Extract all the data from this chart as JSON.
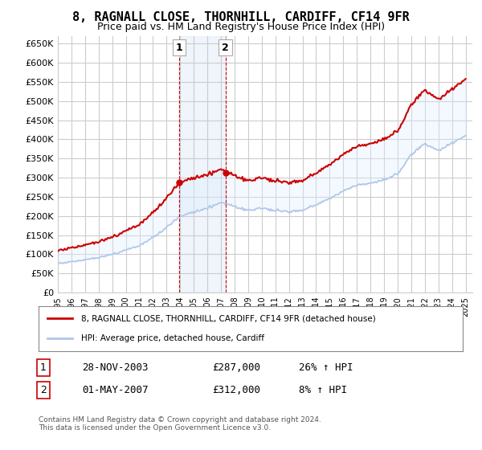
{
  "title": "8, RAGNALL CLOSE, THORNHILL, CARDIFF, CF14 9FR",
  "subtitle": "Price paid vs. HM Land Registry's House Price Index (HPI)",
  "ylabel_ticks": [
    "£0",
    "£50K",
    "£100K",
    "£150K",
    "£200K",
    "£250K",
    "£300K",
    "£350K",
    "£400K",
    "£450K",
    "£500K",
    "£550K",
    "£600K",
    "£650K"
  ],
  "ytick_values": [
    0,
    50000,
    100000,
    150000,
    200000,
    250000,
    300000,
    350000,
    400000,
    450000,
    500000,
    550000,
    600000,
    650000
  ],
  "ylim": [
    0,
    670000
  ],
  "xlim_start": 1995,
  "xlim_end": 2025.5,
  "sale1_date": 2003.91,
  "sale1_price": 287000,
  "sale1_label": "1",
  "sale2_date": 2007.33,
  "sale2_price": 312000,
  "sale2_label": "2",
  "hpi_line_color": "#aec6e8",
  "price_line_color": "#cc0000",
  "shade_color": "#ddeeff",
  "marker_color": "#cc0000",
  "legend_price_label": "8, RAGNALL CLOSE, THORNHILL, CARDIFF, CF14 9FR (detached house)",
  "legend_hpi_label": "HPI: Average price, detached house, Cardiff",
  "table_row1": [
    "1",
    "28-NOV-2003",
    "£287,000",
    "26% ↑ HPI"
  ],
  "table_row2": [
    "2",
    "01-MAY-2007",
    "£312,000",
    "8% ↑ HPI"
  ],
  "footer": "Contains HM Land Registry data © Crown copyright and database right 2024.\nThis data is licensed under the Open Government Licence v3.0.",
  "background_color": "#ffffff",
  "plot_bg_color": "#ffffff",
  "grid_color": "#cccccc"
}
